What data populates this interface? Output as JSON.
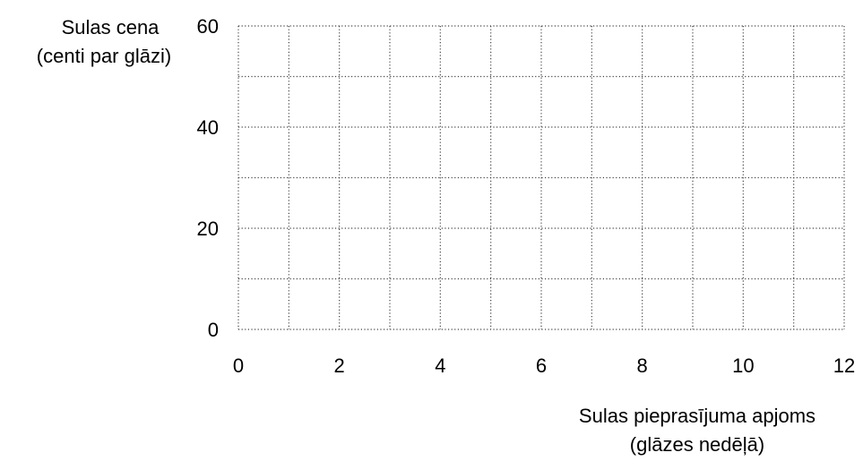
{
  "chart_data": {
    "type": "scatter",
    "ylabel": [
      "Sulas cena",
      "(centi par glāzi)"
    ],
    "xlabel": [
      "Sulas pieprasījuma apjoms",
      "(glāzes nedēļā)"
    ],
    "xlim": [
      0,
      12
    ],
    "xticks": [
      0,
      2,
      4,
      6,
      8,
      10,
      12
    ],
    "ylim": [
      0,
      60
    ],
    "yticks": [
      0,
      20,
      40,
      60
    ],
    "x_gridlines": [
      0,
      1,
      2,
      3,
      4,
      5,
      6,
      7,
      8,
      9,
      10,
      11,
      12
    ],
    "y_gridlines": [
      0,
      10,
      20,
      30,
      40,
      50,
      60
    ],
    "grid": true,
    "series": []
  }
}
